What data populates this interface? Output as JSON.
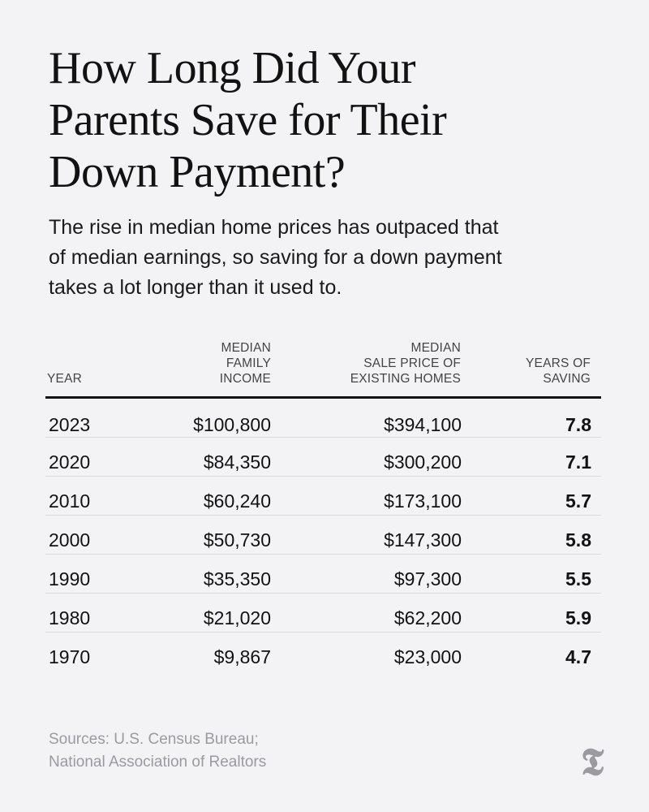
{
  "title_lines": [
    "How Long Did Your",
    "Parents Save for Their",
    "Down Payment?"
  ],
  "subtitle_lines": [
    "The rise in median home prices has outpaced that",
    "of median earnings, so saving for a down payment",
    "takes a lot longer than it used to."
  ],
  "header": {
    "year": [
      "YEAR"
    ],
    "income": [
      "MEDIAN",
      "FAMILY",
      "INCOME"
    ],
    "price": [
      "MEDIAN",
      "SALE PRICE OF",
      "EXISTING HOMES"
    ],
    "years": [
      "YEARS OF",
      "SAVING"
    ]
  },
  "chart_data": {
    "type": "table",
    "columns": [
      "YEAR",
      "MEDIAN FAMILY INCOME",
      "MEDIAN SALE PRICE OF EXISTING HOMES",
      "YEARS OF SAVING"
    ],
    "rows": [
      {
        "year": "2023",
        "income": "$100,800",
        "price": "$394,100",
        "years": "7.8"
      },
      {
        "year": "2020",
        "income": "$84,350",
        "price": "$300,200",
        "years": "7.1"
      },
      {
        "year": "2010",
        "income": "$60,240",
        "price": "$173,100",
        "years": "5.7"
      },
      {
        "year": "2000",
        "income": "$50,730",
        "price": "$147,300",
        "years": "5.8"
      },
      {
        "year": "1990",
        "income": "$35,350",
        "price": "$97,300",
        "years": "5.5"
      },
      {
        "year": "1980",
        "income": "$21,020",
        "price": "$62,200",
        "years": "5.9"
      },
      {
        "year": "1970",
        "income": "$9,867",
        "price": "$23,000",
        "years": "4.7"
      }
    ]
  },
  "sources_lines": [
    "Sources: U.S. Census Bureau;",
    "National Association of Realtors"
  ],
  "logo_glyph": "𝕿"
}
